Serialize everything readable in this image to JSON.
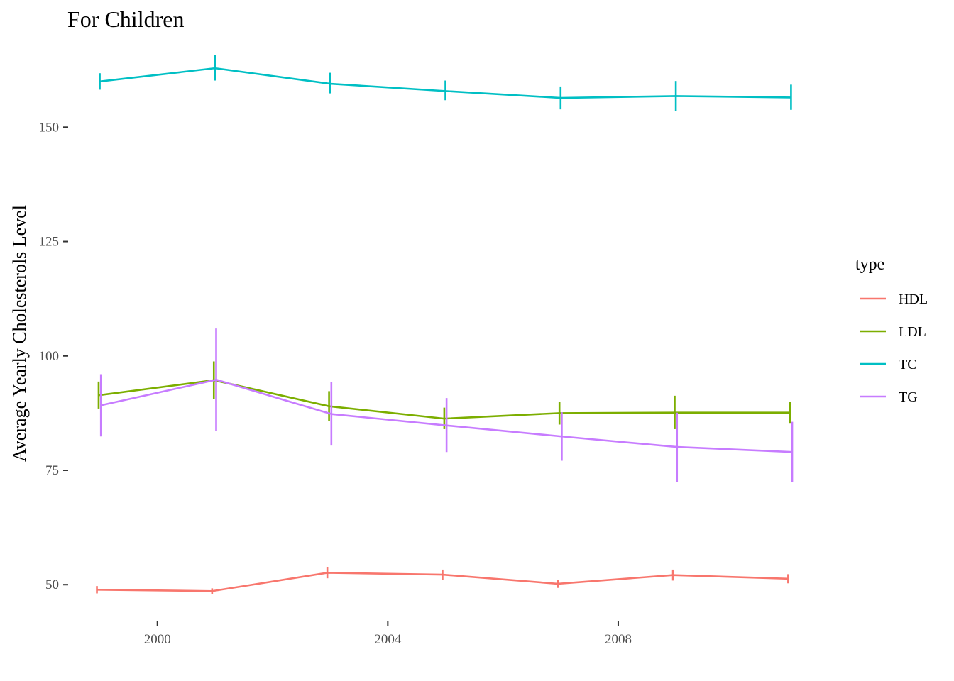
{
  "chart_data": {
    "type": "line",
    "title": "For Children",
    "xlabel": "",
    "ylabel": "Average Yearly Cholesterols Level",
    "xlim": [
      1998.5,
      2011.5
    ],
    "ylim": [
      42.9,
      168.5
    ],
    "xticks": [
      2000,
      2004,
      2008
    ],
    "xtick_labels": [
      "2000",
      "2004",
      "2008"
    ],
    "yticks": [
      50,
      75,
      100,
      125,
      150
    ],
    "ytick_labels": [
      "50",
      "75",
      "100",
      "125",
      "150"
    ],
    "grid": false,
    "legend": {
      "title": "type",
      "position": "right"
    },
    "series": [
      {
        "name": "HDL",
        "color": "#f8766d",
        "x_offset": -0.05,
        "x": [
          1999,
          2001,
          2003,
          2005,
          2007,
          2009,
          2011
        ],
        "y": [
          48.9,
          48.6,
          52.6,
          52.2,
          50.2,
          52.1,
          51.3
        ],
        "ymin": [
          48.1,
          48.0,
          51.4,
          51.1,
          49.3,
          50.9,
          50.3
        ],
        "ymax": [
          49.7,
          49.2,
          53.8,
          53.3,
          51.1,
          53.3,
          52.3
        ]
      },
      {
        "name": "LDL",
        "color": "#7cae00",
        "x_offset": -0.02,
        "x": [
          1999,
          2001,
          2003,
          2005,
          2007,
          2009,
          2011
        ],
        "y": [
          91.4,
          94.7,
          89.0,
          86.3,
          87.5,
          87.6,
          87.6
        ],
        "ymin": [
          88.5,
          90.6,
          85.8,
          84.0,
          85.0,
          84.0,
          85.2
        ],
        "ymax": [
          94.4,
          98.8,
          92.3,
          88.7,
          90.0,
          91.3,
          90.0
        ]
      },
      {
        "name": "TC",
        "color": "#00bfc4",
        "x_offset": 0.0,
        "x": [
          1999,
          2001,
          2003,
          2005,
          2007,
          2009,
          2011
        ],
        "y": [
          160.0,
          162.9,
          159.5,
          157.9,
          156.4,
          156.8,
          156.5
        ],
        "ymin": [
          158.2,
          160.2,
          157.4,
          155.9,
          153.9,
          153.5,
          153.8
        ],
        "ymax": [
          161.8,
          165.8,
          161.9,
          160.2,
          158.9,
          160.1,
          159.3
        ]
      },
      {
        "name": "TG",
        "color": "#c77cff",
        "x_offset": 0.02,
        "x": [
          1999,
          2001,
          2003,
          2005,
          2007,
          2009,
          2011
        ],
        "y": [
          89.2,
          94.8,
          87.3,
          84.8,
          82.4,
          80.1,
          79.0
        ],
        "ymin": [
          82.4,
          83.6,
          80.4,
          79.0,
          77.1,
          72.5,
          72.4
        ],
        "ymax": [
          96.0,
          106.0,
          94.3,
          90.8,
          87.7,
          87.6,
          85.6
        ]
      }
    ]
  }
}
